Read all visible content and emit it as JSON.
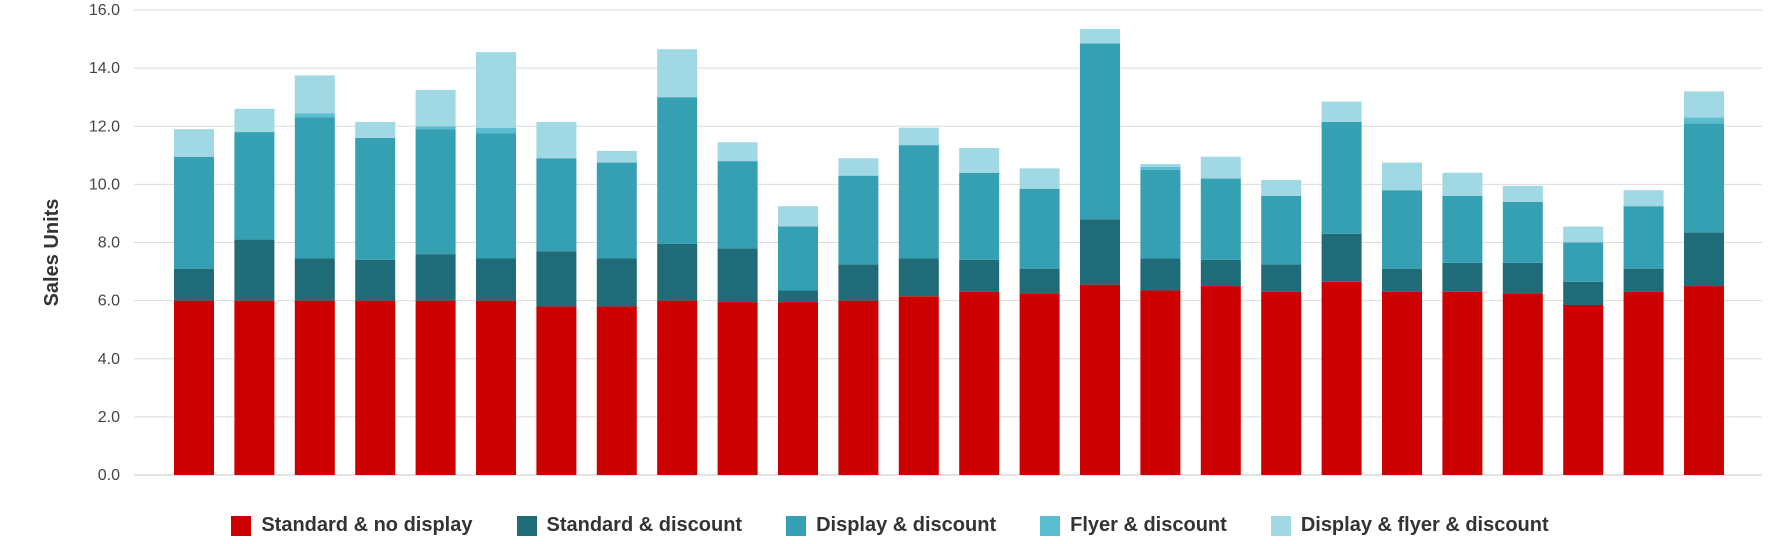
{
  "chart_data": {
    "type": "bar",
    "stacked": true,
    "ylabel": "Sales Units",
    "ylim": [
      0,
      16
    ],
    "yticks": [
      "0.0",
      "2.0",
      "4.0",
      "6.0",
      "8.0",
      "10.0",
      "12.0",
      "14.0",
      "16.0"
    ],
    "grid": true,
    "legend_position": "bottom",
    "categories": [
      "",
      "",
      "",
      "",
      "",
      "",
      "",
      "",
      "",
      "",
      "",
      "",
      "",
      "",
      "",
      "",
      "",
      "",
      "",
      "",
      "",
      "",
      "",
      "",
      "",
      ""
    ],
    "series": [
      {
        "name": "Standard & no display",
        "color": "#cc0000",
        "values": [
          6.0,
          6.0,
          6.0,
          6.0,
          6.0,
          6.0,
          5.8,
          5.8,
          6.0,
          5.95,
          5.95,
          6.0,
          6.15,
          6.3,
          6.25,
          6.55,
          6.35,
          6.5,
          6.3,
          6.65,
          6.3,
          6.3,
          6.25,
          5.85,
          6.3,
          6.5
        ]
      },
      {
        "name": "Standard & discount",
        "color": "#1f6b77",
        "values": [
          1.1,
          2.1,
          1.45,
          1.4,
          1.6,
          1.45,
          1.9,
          1.65,
          1.95,
          1.85,
          0.4,
          1.25,
          1.3,
          1.1,
          0.85,
          2.25,
          1.1,
          0.9,
          0.95,
          1.65,
          0.8,
          1.0,
          1.05,
          0.8,
          0.8,
          1.85
        ]
      },
      {
        "name": "Display & discount",
        "color": "#35a0b2",
        "values": [
          3.85,
          3.7,
          4.85,
          4.2,
          4.3,
          4.3,
          3.2,
          3.3,
          5.05,
          3.0,
          2.2,
          3.05,
          3.9,
          3.0,
          2.75,
          6.05,
          3.05,
          2.8,
          2.35,
          3.85,
          2.7,
          2.3,
          2.1,
          1.35,
          2.15,
          3.75
        ]
      },
      {
        "name": "Flyer & discount",
        "color": "#5bbecf",
        "values": [
          0,
          0,
          0.15,
          0,
          0.1,
          0.2,
          0,
          0,
          0,
          0,
          0,
          0,
          0,
          0,
          0,
          0,
          0.1,
          0,
          0,
          0,
          0,
          0,
          0,
          0,
          0,
          0.2
        ]
      },
      {
        "name": "Display & flyer & discount",
        "color": "#a0d8e4",
        "values": [
          0.95,
          0.8,
          1.3,
          0.55,
          1.25,
          2.6,
          1.25,
          0.4,
          1.65,
          0.65,
          0.7,
          0.6,
          0.6,
          0.85,
          0.7,
          0.5,
          0.1,
          0.75,
          0.55,
          0.7,
          0.95,
          0.8,
          0.55,
          0.55,
          0.55,
          0.9
        ]
      }
    ]
  }
}
